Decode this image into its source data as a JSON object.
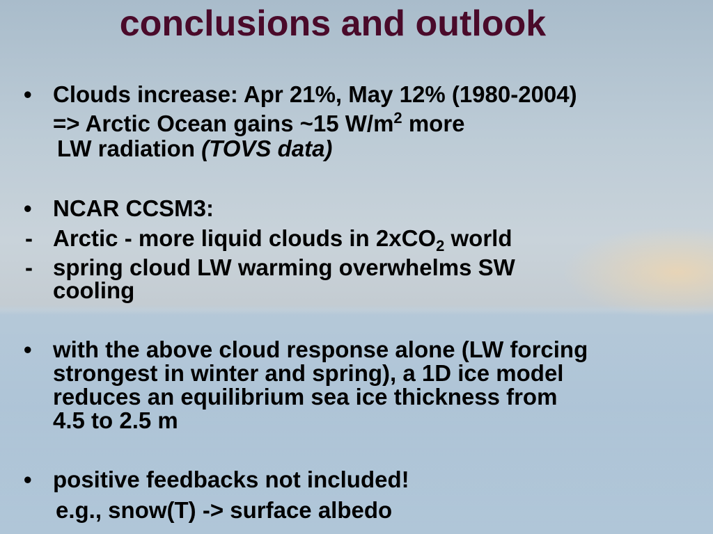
{
  "slide": {
    "title": "conclusions and outlook",
    "lines": [
      {
        "marker": "•",
        "runs": [
          {
            "text": "Clouds increase: Apr 21%, May 12% (1980-2004)"
          }
        ]
      },
      {
        "runs": [
          {
            "text": "=> Arctic Ocean gains ~15 W/m"
          },
          {
            "text": "2",
            "style": "sup"
          },
          {
            "text": " more"
          }
        ]
      },
      {
        "runs": [
          {
            "text": "LW radiation "
          },
          {
            "text": "(TOVS data)",
            "style": "italic"
          }
        ]
      },
      {
        "marker": "•",
        "runs": [
          {
            "text": "NCAR CCSM3:"
          }
        ]
      },
      {
        "marker": "-",
        "runs": [
          {
            "text": "Arctic - more liquid clouds in 2xCO"
          },
          {
            "text": "2",
            "style": "sub"
          },
          {
            "text": " world"
          }
        ]
      },
      {
        "marker": "-",
        "runs": [
          {
            "text": "spring cloud LW warming overwhelms SW"
          }
        ]
      },
      {
        "runs": [
          {
            "text": "cooling"
          }
        ]
      },
      {
        "marker": "•",
        "runs": [
          {
            "text": "with the above cloud response alone (LW forcing"
          }
        ]
      },
      {
        "runs": [
          {
            "text": "strongest in winter and spring), a 1D ice model"
          }
        ]
      },
      {
        "runs": [
          {
            "text": "reduces an equilibrium sea ice thickness from"
          }
        ]
      },
      {
        "runs": [
          {
            "text": "4.5 to 2.5 m"
          }
        ]
      },
      {
        "marker": "•",
        "runs": [
          {
            "text": "positive feedbacks not included!"
          }
        ]
      },
      {
        "runs": [
          {
            "text": "e.g., snow(T) -> surface albedo"
          }
        ]
      }
    ]
  }
}
